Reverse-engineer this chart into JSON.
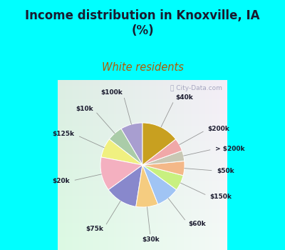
{
  "title": "Income distribution in Knoxville, IA\n(%)",
  "subtitle": "White residents",
  "title_color": "#1a1a2e",
  "subtitle_color": "#b05a00",
  "background_top": "#00ffff",
  "background_chart_top": "#e0f0f0",
  "background_chart_bottom": "#d0eedc",
  "labels": [
    "$100k",
    "$10k",
    "$125k",
    "$20k",
    "$75k",
    "$30k",
    "$60k",
    "$150k",
    "$50k",
    "> $200k",
    "$200k",
    "$40k"
  ],
  "values": [
    8.5,
    6.0,
    7.5,
    13.0,
    12.5,
    8.5,
    9.0,
    6.0,
    5.5,
    4.0,
    5.0,
    14.5
  ],
  "colors": [
    "#a89ed0",
    "#aacca8",
    "#f0f080",
    "#f4b0c0",
    "#8888cc",
    "#f5cc80",
    "#a0c4f4",
    "#c8f080",
    "#f4b888",
    "#c8c8b4",
    "#f0a8a8",
    "#c8a020"
  ],
  "startangle": 90,
  "figsize": [
    4.0,
    3.5
  ],
  "dpi": 100
}
